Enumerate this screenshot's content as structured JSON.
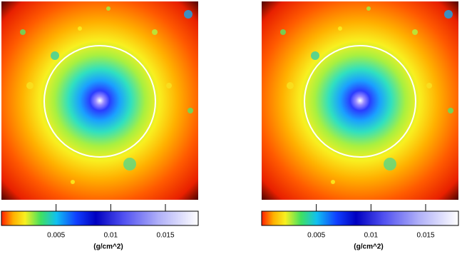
{
  "chart_data": [
    {
      "type": "heatmap",
      "colorbar_label": "(g/cm^2)",
      "clim": [
        0,
        0.018
      ],
      "ticks": [
        0.005,
        0.01,
        0.015
      ]
    },
    {
      "type": "heatmap",
      "colorbar_label": "(g/cm^2)",
      "clim": [
        0,
        0.018
      ],
      "ticks": [
        0.005,
        0.01,
        0.015
      ]
    }
  ]
}
